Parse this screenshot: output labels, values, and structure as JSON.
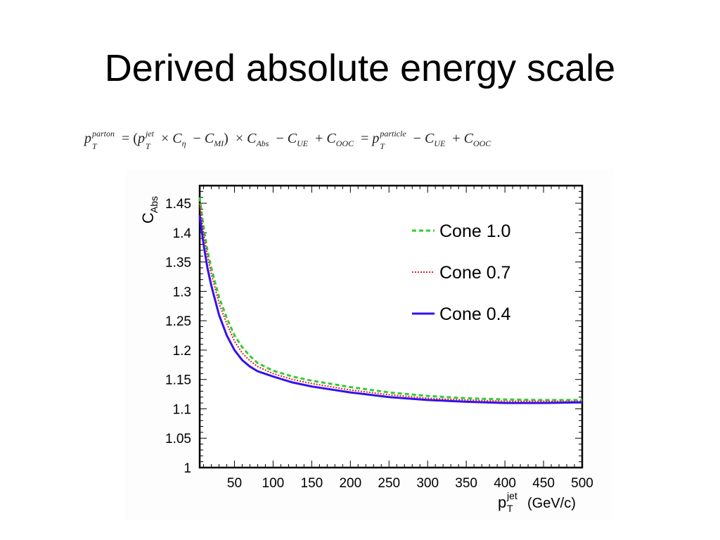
{
  "slide": {
    "title": "Derived absolute energy scale"
  },
  "formula": {
    "lhs_sup": "parton",
    "jet_sup": "jet",
    "c_eta_sub": "η",
    "c_mi_sub": "MI",
    "c_abs_sub": "Abs",
    "c_ue_sub": "UE",
    "c_ooc_sub": "OOC",
    "particle_sup": "particle"
  },
  "chart_data": {
    "type": "line",
    "ylabel": "C",
    "ylabel_sub": "Abs",
    "xlabel": "p",
    "xlabel_sub": "T",
    "xlabel_sup": "jet",
    "xlabel_unit": "(GeV/c)",
    "xlim": [
      5,
      500
    ],
    "ylim": [
      1,
      1.48
    ],
    "x_ticks": [
      50,
      100,
      150,
      200,
      250,
      300,
      350,
      400,
      450,
      500
    ],
    "x_tick_labels": [
      "50",
      "100",
      "150",
      "200",
      "250",
      "300",
      "350",
      "400",
      "450",
      "500"
    ],
    "y_ticks": [
      1,
      1.05,
      1.1,
      1.15,
      1.2,
      1.25,
      1.3,
      1.35,
      1.4,
      1.45
    ],
    "y_tick_labels": [
      "1",
      "1.05",
      "1.1",
      "1.15",
      "1.2",
      "1.25",
      "1.3",
      "1.35",
      "1.4",
      "1.45"
    ],
    "grid": false,
    "legend_position": "top-right",
    "series": [
      {
        "name": "Cone 1.0",
        "color": "#33cc33",
        "style": "dashed",
        "x": [
          5,
          10,
          15,
          20,
          30,
          40,
          50,
          60,
          70,
          80,
          100,
          125,
          150,
          200,
          250,
          300,
          350,
          400,
          450,
          500
        ],
        "y": [
          1.46,
          1.41,
          1.37,
          1.34,
          1.29,
          1.255,
          1.225,
          1.205,
          1.19,
          1.178,
          1.165,
          1.155,
          1.148,
          1.137,
          1.128,
          1.122,
          1.118,
          1.116,
          1.115,
          1.115
        ]
      },
      {
        "name": "Cone 0.7",
        "color": "#dd2222",
        "style": "dotted",
        "x": [
          5,
          10,
          15,
          20,
          30,
          40,
          50,
          60,
          70,
          80,
          100,
          125,
          150,
          200,
          250,
          300,
          350,
          400,
          450,
          500
        ],
        "y": [
          1.45,
          1.4,
          1.36,
          1.33,
          1.28,
          1.245,
          1.215,
          1.195,
          1.182,
          1.172,
          1.16,
          1.15,
          1.143,
          1.132,
          1.124,
          1.118,
          1.115,
          1.113,
          1.113,
          1.113
        ]
      },
      {
        "name": "Cone 0.4",
        "color": "#3311ee",
        "style": "solid",
        "x": [
          5,
          10,
          15,
          20,
          30,
          40,
          50,
          60,
          70,
          80,
          100,
          125,
          150,
          200,
          250,
          300,
          350,
          400,
          450,
          500
        ],
        "y": [
          1.43,
          1.38,
          1.34,
          1.31,
          1.26,
          1.225,
          1.2,
          1.183,
          1.172,
          1.164,
          1.155,
          1.145,
          1.138,
          1.128,
          1.12,
          1.115,
          1.112,
          1.11,
          1.11,
          1.111
        ]
      }
    ]
  }
}
